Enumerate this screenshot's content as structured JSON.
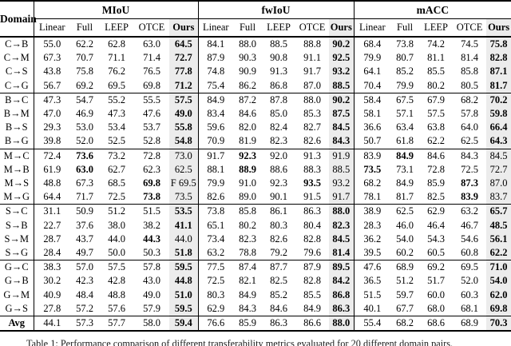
{
  "colors": {
    "ours_column_bg": "#ececec",
    "rule_color": "#000000",
    "page_bg": "#ffffff"
  },
  "caption": "Table 1: Performance comparison of different transferability metrics evaluated for 20 different domain pairs.",
  "table": {
    "corner_label": "Domain",
    "metric_groups": [
      "MIoU",
      "fwIoU",
      "mACC"
    ],
    "method_columns": [
      "Linear",
      "Full",
      "LEEP",
      "OTCE",
      "Ours"
    ],
    "highlighted_method": "Ours",
    "rows": [
      {
        "domain": "C→B",
        "block_start": false,
        "avg": false,
        "miou": {
          "values": [
            "55.0",
            "62.2",
            "62.8",
            "63.0",
            "64.5"
          ],
          "bold": 4
        },
        "fwiou": {
          "values": [
            "84.1",
            "88.0",
            "88.5",
            "88.8",
            "90.2"
          ],
          "bold": 4
        },
        "macc": {
          "values": [
            "68.4",
            "73.8",
            "74.2",
            "74.5",
            "75.8"
          ],
          "bold": 4
        }
      },
      {
        "domain": "C→M",
        "block_start": false,
        "avg": false,
        "miou": {
          "values": [
            "67.3",
            "70.7",
            "71.1",
            "71.4",
            "72.7"
          ],
          "bold": 4
        },
        "fwiou": {
          "values": [
            "87.9",
            "90.3",
            "90.8",
            "91.1",
            "92.5"
          ],
          "bold": 4
        },
        "macc": {
          "values": [
            "79.9",
            "80.7",
            "81.1",
            "81.4",
            "82.8"
          ],
          "bold": 4
        }
      },
      {
        "domain": "C→S",
        "block_start": false,
        "avg": false,
        "miou": {
          "values": [
            "43.8",
            "75.8",
            "76.2",
            "76.5",
            "77.8"
          ],
          "bold": 4
        },
        "fwiou": {
          "values": [
            "74.8",
            "90.9",
            "91.3",
            "91.7",
            "93.2"
          ],
          "bold": 4
        },
        "macc": {
          "values": [
            "64.1",
            "85.2",
            "85.5",
            "85.8",
            "87.1"
          ],
          "bold": 4
        }
      },
      {
        "domain": "C→G",
        "block_start": false,
        "avg": false,
        "miou": {
          "values": [
            "56.7",
            "69.2",
            "69.5",
            "69.8",
            "71.2"
          ],
          "bold": 4
        },
        "fwiou": {
          "values": [
            "75.4",
            "86.2",
            "86.8",
            "87.0",
            "88.5"
          ],
          "bold": 4
        },
        "macc": {
          "values": [
            "70.4",
            "79.9",
            "80.2",
            "80.5",
            "81.7"
          ],
          "bold": 4
        }
      },
      {
        "domain": "B→C",
        "block_start": true,
        "avg": false,
        "miou": {
          "values": [
            "47.3",
            "54.7",
            "55.2",
            "55.5",
            "57.5"
          ],
          "bold": 4
        },
        "fwiou": {
          "values": [
            "84.9",
            "87.2",
            "87.8",
            "88.0",
            "90.2"
          ],
          "bold": 4
        },
        "macc": {
          "values": [
            "58.4",
            "67.5",
            "67.9",
            "68.2",
            "70.2"
          ],
          "bold": 4
        }
      },
      {
        "domain": "B→M",
        "block_start": false,
        "avg": false,
        "miou": {
          "values": [
            "47.0",
            "46.9",
            "47.3",
            "47.6",
            "49.0"
          ],
          "bold": 4
        },
        "fwiou": {
          "values": [
            "83.4",
            "84.6",
            "85.0",
            "85.3",
            "87.5"
          ],
          "bold": 4
        },
        "macc": {
          "values": [
            "58.1",
            "57.1",
            "57.5",
            "57.8",
            "59.8"
          ],
          "bold": 4
        }
      },
      {
        "domain": "B→S",
        "block_start": false,
        "avg": false,
        "miou": {
          "values": [
            "29.3",
            "53.0",
            "53.4",
            "53.7",
            "55.8"
          ],
          "bold": 4
        },
        "fwiou": {
          "values": [
            "59.6",
            "82.0",
            "82.4",
            "82.7",
            "84.5"
          ],
          "bold": 4
        },
        "macc": {
          "values": [
            "36.6",
            "63.4",
            "63.8",
            "64.0",
            "66.4"
          ],
          "bold": 4
        }
      },
      {
        "domain": "B→G",
        "block_start": false,
        "avg": false,
        "miou": {
          "values": [
            "39.8",
            "52.0",
            "52.5",
            "52.8",
            "54.8"
          ],
          "bold": 4
        },
        "fwiou": {
          "values": [
            "70.9",
            "81.9",
            "82.3",
            "82.6",
            "84.3"
          ],
          "bold": 4
        },
        "macc": {
          "values": [
            "50.7",
            "61.8",
            "62.2",
            "62.5",
            "64.3"
          ],
          "bold": 4
        }
      },
      {
        "domain": "M→C",
        "block_start": true,
        "avg": false,
        "miou": {
          "values": [
            "72.4",
            "73.6",
            "73.2",
            "72.8",
            "73.0"
          ],
          "bold": 1
        },
        "fwiou": {
          "values": [
            "91.7",
            "92.3",
            "92.0",
            "91.3",
            "91.9"
          ],
          "bold": 1
        },
        "macc": {
          "values": [
            "83.9",
            "84.9",
            "84.6",
            "84.3",
            "84.5"
          ],
          "bold": 1
        }
      },
      {
        "domain": "M→B",
        "block_start": false,
        "avg": false,
        "miou": {
          "values": [
            "61.9",
            "63.0",
            "62.7",
            "62.3",
            "62.5"
          ],
          "bold": 1
        },
        "fwiou": {
          "values": [
            "88.1",
            "88.9",
            "88.6",
            "88.3",
            "88.5"
          ],
          "bold": 1
        },
        "macc": {
          "values": [
            "73.5",
            "73.1",
            "72.8",
            "72.5",
            "72.7"
          ],
          "bold": 0
        }
      },
      {
        "domain": "M→S",
        "block_start": false,
        "avg": false,
        "miou": {
          "values": [
            "48.8",
            "67.3",
            "68.5",
            "69.8",
            "F 69.5"
          ],
          "bold": 3
        },
        "fwiou": {
          "values": [
            "79.9",
            "91.0",
            "92.3",
            "93.5",
            "93.2"
          ],
          "bold": 3
        },
        "macc": {
          "values": [
            "68.2",
            "84.9",
            "85.9",
            "87.3",
            "87.0"
          ],
          "bold": 3
        }
      },
      {
        "domain": "M→G",
        "block_start": false,
        "avg": false,
        "miou": {
          "values": [
            "64.4",
            "71.7",
            "72.5",
            "73.8",
            "73.5"
          ],
          "bold": 3
        },
        "fwiou": {
          "values": [
            "82.6",
            "89.0",
            "90.1",
            "91.5",
            "91.7"
          ],
          "bold": null
        },
        "macc": {
          "values": [
            "78.1",
            "81.7",
            "82.5",
            "83.9",
            "83.7"
          ],
          "bold": 3
        }
      },
      {
        "domain": "S→C",
        "block_start": true,
        "avg": false,
        "miou": {
          "values": [
            "31.1",
            "50.9",
            "51.2",
            "51.5",
            "53.5"
          ],
          "bold": 4
        },
        "fwiou": {
          "values": [
            "73.8",
            "85.8",
            "86.1",
            "86.3",
            "88.0"
          ],
          "bold": 4
        },
        "macc": {
          "values": [
            "38.9",
            "62.5",
            "62.9",
            "63.2",
            "65.7"
          ],
          "bold": 4
        }
      },
      {
        "domain": "S→B",
        "block_start": false,
        "avg": false,
        "miou": {
          "values": [
            "22.7",
            "37.6",
            "38.0",
            "38.2",
            "41.1"
          ],
          "bold": 4
        },
        "fwiou": {
          "values": [
            "65.1",
            "80.2",
            "80.3",
            "80.4",
            "82.3"
          ],
          "bold": 4
        },
        "macc": {
          "values": [
            "28.3",
            "46.0",
            "46.4",
            "46.7",
            "48.5"
          ],
          "bold": 4
        }
      },
      {
        "domain": "S→M",
        "block_start": false,
        "avg": false,
        "miou": {
          "values": [
            "28.7",
            "43.7",
            "44.0",
            "44.3",
            "44.0"
          ],
          "bold": 3
        },
        "fwiou": {
          "values": [
            "73.4",
            "82.3",
            "82.6",
            "82.8",
            "84.5"
          ],
          "bold": 4
        },
        "macc": {
          "values": [
            "36.2",
            "54.0",
            "54.3",
            "54.6",
            "56.1"
          ],
          "bold": 4
        }
      },
      {
        "domain": "S→G",
        "block_start": false,
        "avg": false,
        "miou": {
          "values": [
            "28.4",
            "49.7",
            "50.0",
            "50.3",
            "51.8"
          ],
          "bold": 4
        },
        "fwiou": {
          "values": [
            "63.2",
            "78.8",
            "79.2",
            "79.6",
            "81.4"
          ],
          "bold": 4
        },
        "macc": {
          "values": [
            "39.5",
            "60.2",
            "60.5",
            "60.8",
            "62.2"
          ],
          "bold": 4
        }
      },
      {
        "domain": "G→C",
        "block_start": true,
        "avg": false,
        "miou": {
          "values": [
            "38.3",
            "57.0",
            "57.5",
            "57.8",
            "59.5"
          ],
          "bold": 4
        },
        "fwiou": {
          "values": [
            "77.5",
            "87.4",
            "87.7",
            "87.9",
            "89.5"
          ],
          "bold": 4
        },
        "macc": {
          "values": [
            "47.6",
            "68.9",
            "69.2",
            "69.5",
            "71.0"
          ],
          "bold": 4
        }
      },
      {
        "domain": "G→B",
        "block_start": false,
        "avg": false,
        "miou": {
          "values": [
            "30.2",
            "42.3",
            "42.8",
            "43.0",
            "44.8"
          ],
          "bold": 4
        },
        "fwiou": {
          "values": [
            "72.5",
            "82.1",
            "82.5",
            "82.8",
            "84.2"
          ],
          "bold": 4
        },
        "macc": {
          "values": [
            "36.5",
            "51.2",
            "51.7",
            "52.0",
            "54.0"
          ],
          "bold": 4
        }
      },
      {
        "domain": "G→M",
        "block_start": false,
        "avg": false,
        "miou": {
          "values": [
            "40.9",
            "48.4",
            "48.8",
            "49.0",
            "51.0"
          ],
          "bold": 4
        },
        "fwiou": {
          "values": [
            "80.3",
            "84.9",
            "85.2",
            "85.5",
            "86.8"
          ],
          "bold": 4
        },
        "macc": {
          "values": [
            "51.5",
            "59.7",
            "60.0",
            "60.3",
            "62.0"
          ],
          "bold": 4
        }
      },
      {
        "domain": "G→S",
        "block_start": false,
        "avg": false,
        "miou": {
          "values": [
            "27.8",
            "57.2",
            "57.6",
            "57.9",
            "59.5"
          ],
          "bold": 4
        },
        "fwiou": {
          "values": [
            "62.9",
            "84.3",
            "84.6",
            "84.9",
            "86.3"
          ],
          "bold": 4
        },
        "macc": {
          "values": [
            "40.1",
            "67.7",
            "68.0",
            "68.1",
            "69.8"
          ],
          "bold": 4
        }
      },
      {
        "domain": "Avg",
        "block_start": true,
        "avg": true,
        "miou": {
          "values": [
            "44.1",
            "57.3",
            "57.7",
            "58.0",
            "59.4"
          ],
          "bold": 4
        },
        "fwiou": {
          "values": [
            "76.6",
            "85.9",
            "86.3",
            "86.6",
            "88.0"
          ],
          "bold": 4
        },
        "macc": {
          "values": [
            "55.4",
            "68.2",
            "68.6",
            "68.9",
            "70.3"
          ],
          "bold": 4
        }
      }
    ]
  }
}
